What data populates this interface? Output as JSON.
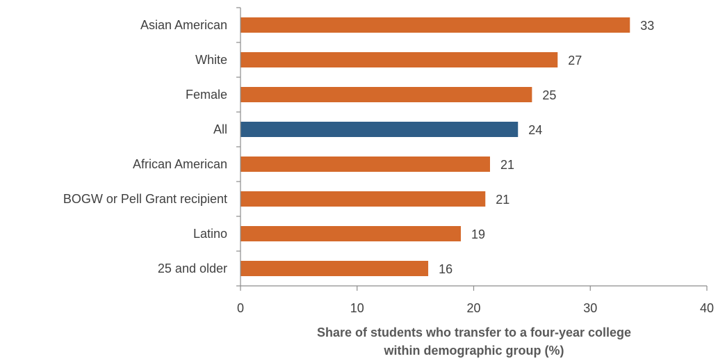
{
  "chart_data": {
    "type": "bar",
    "orientation": "horizontal",
    "categories": [
      "Asian American",
      "White",
      "Female",
      "All",
      "African American",
      "BOGW or Pell Grant recipient",
      "Latino",
      "25 and older"
    ],
    "values": [
      33,
      27,
      25,
      24,
      21,
      21,
      19,
      16
    ],
    "data_labels": [
      "33",
      "27",
      "25",
      "24",
      "21",
      "21",
      "19",
      "16"
    ],
    "bar_values_estimated": [
      33.4,
      27.2,
      25.0,
      23.8,
      21.4,
      21.0,
      18.9,
      16.1
    ],
    "highlight_category": "All",
    "xlim": [
      0,
      40
    ],
    "xticks": [
      0,
      10,
      20,
      30,
      40
    ],
    "xlabel_lines": [
      "Share of students who transfer to a four-year college",
      "within demographic group (%)"
    ],
    "grid": false,
    "legend": "none",
    "colors": {
      "bar": "#d4692a",
      "highlight": "#2e5d87"
    }
  }
}
